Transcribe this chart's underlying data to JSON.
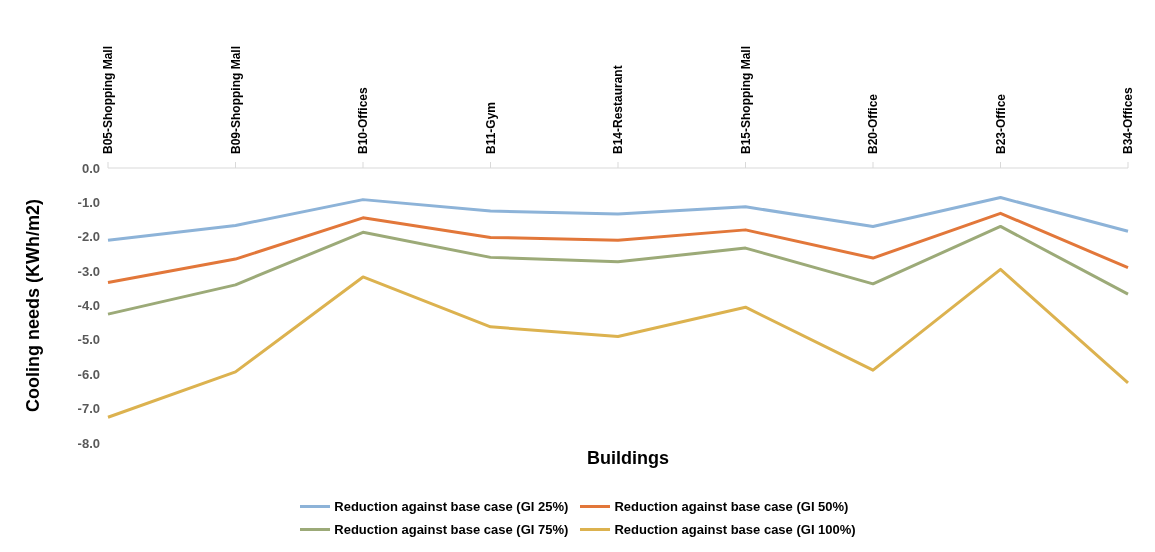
{
  "chart_data": {
    "type": "line",
    "xlabel": "Buildings",
    "ylabel": "Cooling needs (KWh/m2)",
    "categories": [
      "B05-Shopping Mall",
      "B09-Shopping Mall",
      "B10-Offices",
      "B11-Gym",
      "B14-Restaurant",
      "B15-Shopping Mall",
      "B20-Office",
      "B23-Office",
      "B34-Offices"
    ],
    "ylim": [
      -8,
      0
    ],
    "yticks": [
      {
        "value": 0,
        "label": "0.0"
      },
      {
        "value": -1,
        "label": "-1.0"
      },
      {
        "value": -2,
        "label": "-2.0"
      },
      {
        "value": -3,
        "label": "-3.0"
      },
      {
        "value": -4,
        "label": "-4.0"
      },
      {
        "value": -5,
        "label": "-5.0"
      },
      {
        "value": -6,
        "label": "-6.0"
      },
      {
        "value": -7,
        "label": "-7.0"
      },
      {
        "value": -8,
        "label": "-8.0"
      }
    ],
    "legend": "bottom",
    "series": [
      {
        "name": "Reduction against base case (GI 25%)",
        "color": "#8db3d8",
        "values": [
          -2.1,
          -1.67,
          -0.92,
          -1.25,
          -1.34,
          -1.13,
          -1.7,
          -0.86,
          -1.84
        ]
      },
      {
        "name": "Reduction against base case (GI 50%)",
        "color": "#e2773a",
        "values": [
          -3.33,
          -2.65,
          -1.45,
          -2.02,
          -2.1,
          -1.8,
          -2.62,
          -1.32,
          -2.9
        ]
      },
      {
        "name": "Reduction against base case (GI 75%)",
        "color": "#9caa78",
        "values": [
          -4.25,
          -3.4,
          -1.87,
          -2.6,
          -2.73,
          -2.33,
          -3.37,
          -1.7,
          -3.67
        ]
      },
      {
        "name": "Reduction against base case (GI 100%)",
        "color": "#dcb24f",
        "values": [
          -7.25,
          -5.93,
          -3.17,
          -4.62,
          -4.9,
          -4.05,
          -5.88,
          -2.95,
          -6.25
        ]
      }
    ]
  }
}
